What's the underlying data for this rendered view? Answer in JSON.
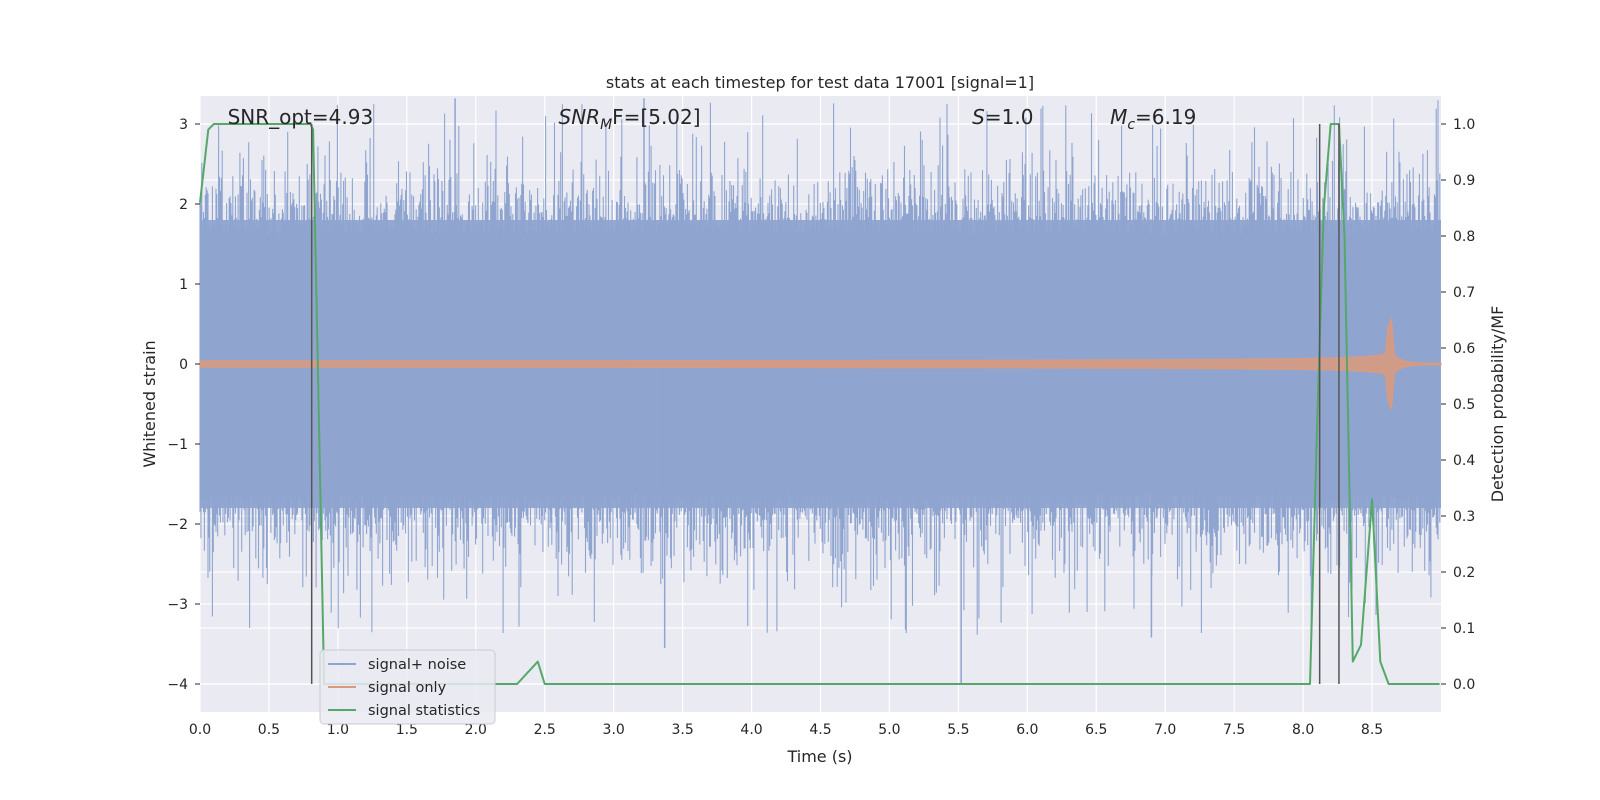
{
  "chart_data": {
    "type": "line",
    "title": "stats at each timestep for test data 17001 [signal=1]",
    "xlabel": "Time (s)",
    "ylabel": "Whitened strain",
    "y2label": "Detection probability/MF",
    "xlim": [
      0.0,
      9.0
    ],
    "ylim": [
      -4.35,
      3.35
    ],
    "y2lim": [
      -0.05,
      1.05
    ],
    "xticks": [
      0.0,
      0.5,
      1.0,
      1.5,
      2.0,
      2.5,
      3.0,
      3.5,
      4.0,
      4.5,
      5.0,
      5.5,
      6.0,
      6.5,
      7.0,
      7.5,
      8.0,
      8.5
    ],
    "xtick_labels": [
      "0.0",
      "0.5",
      "1.0",
      "1.5",
      "2.0",
      "2.5",
      "3.0",
      "3.5",
      "4.0",
      "4.5",
      "5.0",
      "5.5",
      "6.0",
      "6.5",
      "7.0",
      "7.5",
      "8.0",
      "8.5"
    ],
    "yticks": [
      3,
      2,
      1,
      0,
      -1,
      -2,
      -3,
      -4
    ],
    "ytick_labels": [
      "3",
      "2",
      "1",
      "0",
      "−1",
      "−2",
      "−3",
      "−4"
    ],
    "y2ticks": [
      1.0,
      0.9,
      0.8,
      0.7,
      0.6,
      0.5,
      0.4,
      0.3,
      0.2,
      0.1,
      0.0
    ],
    "y2tick_labels": [
      "1.0",
      "0.9",
      "0.8",
      "0.7",
      "0.6",
      "0.5",
      "0.4",
      "0.3",
      "0.2",
      "0.1",
      "0.0"
    ],
    "grid": true,
    "legend_placement": "bottom-left",
    "annotations": [
      {
        "text": "SNR_opt=4.93",
        "x": 0.2
      },
      {
        "text": "SNR_MF=[5.02]",
        "x": 2.6,
        "math": true,
        "base": "SNR",
        "sub": "M",
        "rest": "F=[5.02]"
      },
      {
        "text": "S=1.0",
        "x": 5.6,
        "math": true,
        "base": "S",
        "sub": "",
        "rest": "=1.0"
      },
      {
        "text": "M_c=6.19",
        "x": 6.6,
        "math": true,
        "base": "M",
        "sub": "c",
        "rest": "=6.19"
      }
    ],
    "vlines": [
      0.81,
      8.12,
      8.26
    ],
    "series": [
      {
        "name": "signal+ noise",
        "color": "#8fa5d0",
        "axis": "left",
        "kind": "noise",
        "band": [
          -1.8,
          1.8
        ],
        "extremes": [
          3.32,
          -4.0
        ]
      },
      {
        "name": "signal only",
        "color": "#dd9a7a",
        "axis": "left",
        "kind": "chirp",
        "t_merger": 8.65,
        "peak_amplitude": 0.6
      },
      {
        "name": "signal statistics",
        "color": "#55a868",
        "axis": "right",
        "kind": "line",
        "x": [
          0.0,
          0.06,
          0.1,
          0.8,
          0.82,
          0.86,
          0.9,
          2.3,
          2.45,
          2.5,
          3.7,
          8.05,
          8.1,
          8.15,
          8.2,
          8.26,
          8.3,
          8.36,
          8.42,
          8.5,
          8.56,
          8.62,
          8.68,
          8.73,
          8.99
        ],
        "y": [
          0.86,
          0.99,
          1.0,
          1.0,
          0.99,
          0.5,
          0.0,
          0.0,
          0.04,
          0.0,
          0.0,
          0.0,
          0.45,
          0.85,
          1.0,
          1.0,
          0.8,
          0.04,
          0.07,
          0.33,
          0.04,
          0.0,
          0.0,
          0.0,
          0.0
        ]
      }
    ],
    "colors": {
      "plot_background": "#eaeaf2",
      "grid": "#ffffff",
      "text": "#262626",
      "vline": "#555555"
    }
  }
}
